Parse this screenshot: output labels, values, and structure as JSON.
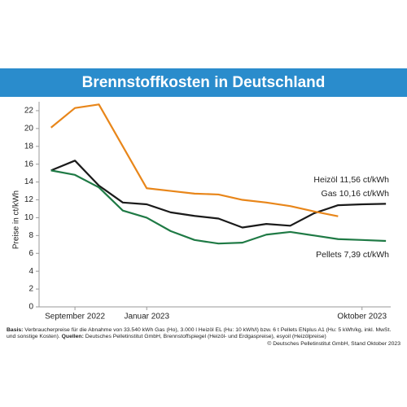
{
  "header": {
    "title": "Brennstoffkosten in Deutschland"
  },
  "chart_data": {
    "type": "line",
    "y_label": "Preise in ct/kWh",
    "x": [
      0,
      1,
      2,
      3,
      4,
      5,
      6,
      7,
      8,
      9,
      10,
      11,
      12,
      13,
      14
    ],
    "xlim": [
      -0.5,
      14.2
    ],
    "xticks": [
      {
        "value": 1,
        "label": "September 2022"
      },
      {
        "value": 4,
        "label": "Januar 2023"
      },
      {
        "value": 13,
        "label": "Oktober 2023"
      }
    ],
    "ylim": [
      0,
      23
    ],
    "yticks": [
      0,
      2,
      4,
      6,
      8,
      10,
      12,
      14,
      16,
      18,
      20,
      22
    ],
    "grid": false,
    "series": [
      {
        "name": "Heizöl",
        "color": "#1a1a1a",
        "values": [
          15.3,
          16.4,
          13.6,
          11.7,
          11.5,
          10.6,
          10.2,
          9.9,
          8.9,
          9.3,
          9.1,
          10.5,
          11.4,
          11.5,
          11.56
        ]
      },
      {
        "name": "Gas",
        "color": "#e8861a",
        "values": [
          20.1,
          22.3,
          22.7,
          18.0,
          13.3,
          13.0,
          12.7,
          12.6,
          12.0,
          11.7,
          11.3,
          10.7,
          10.16,
          null,
          null
        ]
      },
      {
        "name": "Pellets",
        "color": "#1f7a45",
        "values": [
          15.3,
          14.8,
          13.4,
          10.8,
          10.0,
          8.5,
          7.5,
          7.1,
          7.2,
          8.1,
          8.4,
          8.0,
          7.6,
          7.5,
          7.39
        ]
      }
    ],
    "annotations": [
      "Heizöl  11,56 ct/kWh",
      "Gas  10,16 ct/kWh",
      "Pellets  7,39 ct/kWh"
    ]
  },
  "footer": {
    "basis_label": "Basis:",
    "basis_text": "Verbraucherpreise für die Abnahme von 33.540 kWh Gas (Ho), 3.000 l Heizöl EL (Hu: 10 kWh/l) bzw. 6 t Pellets ENplus A1 (Hu: 5 kWh/kg, inkl. MwSt. und sonstige Kosten).",
    "sources_label": "Quellen:",
    "sources_text": "Deutsches Pelletinstitut GmbH, Brennstoffspiegel (Heizöl- und Erdgaspreise), esyoil (Heizölpreise)",
    "copyright": "© Deutsches Pelletinstitut GmbH, Stand Oktober 2023"
  }
}
